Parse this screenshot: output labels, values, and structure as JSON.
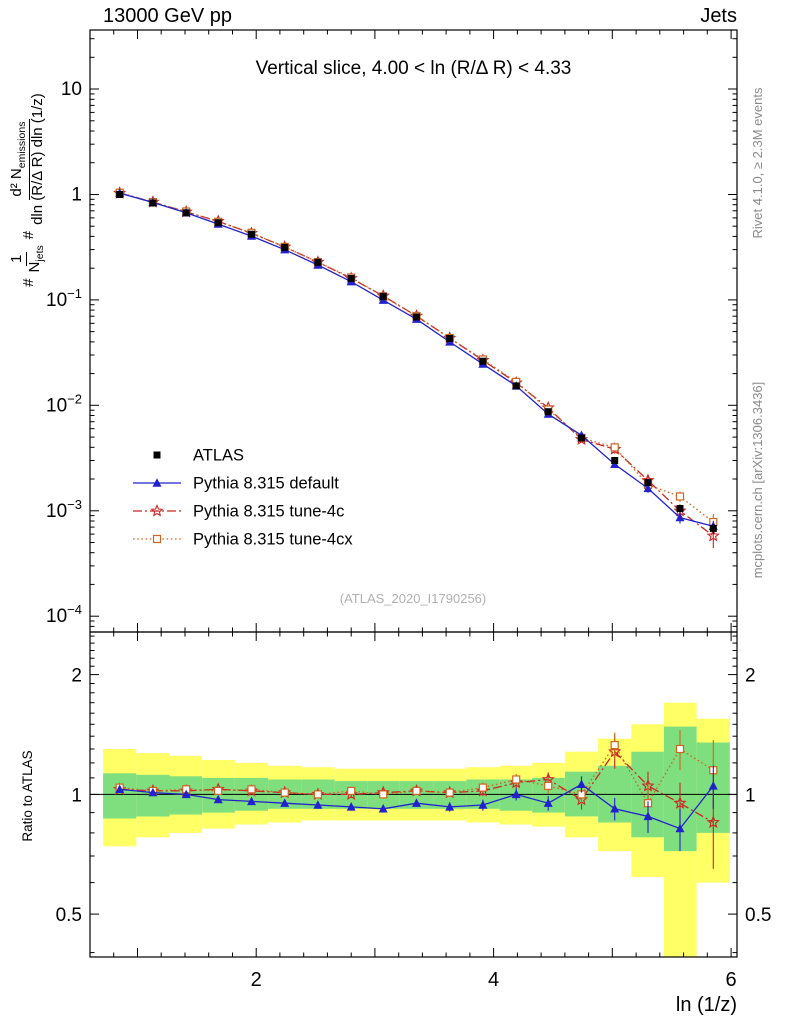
{
  "header": {
    "left": "13000 GeV pp",
    "right": "Jets"
  },
  "panel_title": "Vertical slice, 4.00 < ln (R/Δ R) < 4.33",
  "watermark": "(ATLAS_2020_I1790256)",
  "side_notes": {
    "top": "Rivet 4.1.0, ≥ 2.3M events",
    "bottom": "mcplots.cern.ch [arXiv:1306.3436]"
  },
  "axis": {
    "xlabel": "ln (1/z)",
    "ratio_ylabel": "Ratio to ATLAS"
  },
  "ylabel_parts": {
    "hash1": "#",
    "frac1": {
      "num": [
        {
          "t": "1"
        }
      ],
      "den": [
        {
          "t": "N"
        },
        {
          "sub": "jets"
        }
      ]
    },
    "hash2": "#",
    "frac2": {
      "num": [
        {
          "t": "d² N"
        },
        {
          "sub": "emissions"
        }
      ],
      "den": [
        {
          "t": "dln (R/Δ R) dln (1/z)"
        }
      ]
    }
  },
  "chart_data": {
    "type": "line",
    "title": "Vertical slice, 4.00 < ln (R/Δ R) < 4.33",
    "xlabel": "ln (1/z)",
    "ylabel": "1/N_jets d²N_emissions / dln(R/ΔR) dln(1/z)",
    "ratio_ylabel": "Ratio to ATLAS",
    "xlim": [
      0.6,
      6.05
    ],
    "ylog_range": [
      -4.15,
      1.56
    ],
    "ratio_range": [
      0.39,
      2.56
    ],
    "xticks_labeled": [
      2,
      4,
      6
    ],
    "ratio_ticks": [
      0.5,
      1,
      2
    ],
    "legend_position": "mid-left",
    "grid": false,
    "colors": {
      "atlas": "#000000",
      "default": "#2222cc",
      "tune4c": "#cc2525",
      "tune4cx": "#cc6622",
      "band_yellow": "#ffff66",
      "band_green": "#7fdf7f",
      "gray_text": "#8a8a8a"
    },
    "x": [
      0.85,
      1.13,
      1.41,
      1.68,
      1.96,
      2.24,
      2.52,
      2.8,
      3.07,
      3.35,
      3.63,
      3.91,
      4.19,
      4.46,
      4.74,
      5.02,
      5.3,
      5.57,
      5.85
    ],
    "series": [
      {
        "id": "atlas",
        "name": "ATLAS",
        "marker": "square-filled",
        "line": "none",
        "color": "#000000",
        "values": [
          1.0,
          0.83,
          0.67,
          0.54,
          0.42,
          0.315,
          0.228,
          0.16,
          0.108,
          0.069,
          0.043,
          0.0262,
          0.0153,
          0.0087,
          0.0049,
          0.003,
          0.00185,
          0.00105,
          0.00068
        ],
        "rel_err": [
          0.015,
          0.015,
          0.015,
          0.015,
          0.015,
          0.015,
          0.015,
          0.015,
          0.02,
          0.02,
          0.02,
          0.025,
          0.03,
          0.035,
          0.04,
          0.05,
          0.07,
          0.09,
          0.11
        ]
      },
      {
        "id": "default",
        "name": "Pythia 8.315 default",
        "marker": "triangle-filled",
        "line": "solid",
        "color": "#2222cc",
        "ratio": [
          1.03,
          1.01,
          1.0,
          0.97,
          0.96,
          0.95,
          0.94,
          0.93,
          0.92,
          0.95,
          0.93,
          0.94,
          1.0,
          0.95,
          1.06,
          0.92,
          0.88,
          0.82,
          1.05
        ],
        "ratio_err": [
          0.015,
          0.015,
          0.015,
          0.015,
          0.015,
          0.015,
          0.02,
          0.02,
          0.02,
          0.02,
          0.025,
          0.03,
          0.035,
          0.04,
          0.05,
          0.06,
          0.08,
          0.1,
          0.13
        ]
      },
      {
        "id": "tune4c",
        "name": "Pythia 8.315 tune-4c",
        "marker": "star-open",
        "line": "dashdot",
        "color": "#cc2525",
        "ratio": [
          1.03,
          1.02,
          1.02,
          1.03,
          1.02,
          1.01,
          1.0,
          1.0,
          1.01,
          1.02,
          1.01,
          1.02,
          1.07,
          1.09,
          0.97,
          1.28,
          1.05,
          0.95,
          0.85
        ],
        "ratio_err": [
          0.015,
          0.015,
          0.015,
          0.015,
          0.015,
          0.015,
          0.02,
          0.02,
          0.02,
          0.02,
          0.025,
          0.03,
          0.035,
          0.045,
          0.055,
          0.12,
          0.09,
          0.12,
          0.2
        ]
      },
      {
        "id": "tune4cx",
        "name": "Pythia 8.315 tune-4cx",
        "marker": "square-open",
        "line": "dotted",
        "color": "#cc6622",
        "ratio": [
          1.04,
          1.02,
          1.03,
          1.02,
          1.03,
          1.01,
          1.0,
          1.02,
          1.0,
          1.02,
          1.01,
          1.04,
          1.09,
          1.05,
          1.0,
          1.33,
          0.95,
          1.3,
          1.15
        ],
        "ratio_err": [
          0.015,
          0.015,
          0.015,
          0.015,
          0.015,
          0.015,
          0.02,
          0.02,
          0.02,
          0.02,
          0.025,
          0.03,
          0.035,
          0.045,
          0.055,
          0.1,
          0.11,
          0.15,
          0.22
        ]
      }
    ],
    "bands": {
      "yellow": {
        "lo": [
          0.74,
          0.78,
          0.8,
          0.82,
          0.84,
          0.85,
          0.86,
          0.86,
          0.86,
          0.86,
          0.86,
          0.85,
          0.84,
          0.83,
          0.78,
          0.72,
          0.62,
          0.36,
          0.6
        ],
        "hi": [
          1.3,
          1.27,
          1.25,
          1.22,
          1.2,
          1.18,
          1.17,
          1.16,
          1.16,
          1.16,
          1.16,
          1.17,
          1.18,
          1.2,
          1.28,
          1.38,
          1.5,
          1.7,
          1.55
        ]
      },
      "green": {
        "lo": [
          0.87,
          0.88,
          0.89,
          0.9,
          0.91,
          0.92,
          0.92,
          0.92,
          0.92,
          0.92,
          0.92,
          0.92,
          0.91,
          0.9,
          0.88,
          0.85,
          0.78,
          0.72,
          0.8
        ],
        "hi": [
          1.13,
          1.12,
          1.11,
          1.1,
          1.1,
          1.09,
          1.09,
          1.08,
          1.08,
          1.08,
          1.08,
          1.09,
          1.09,
          1.1,
          1.14,
          1.18,
          1.28,
          1.48,
          1.35
        ]
      }
    }
  }
}
